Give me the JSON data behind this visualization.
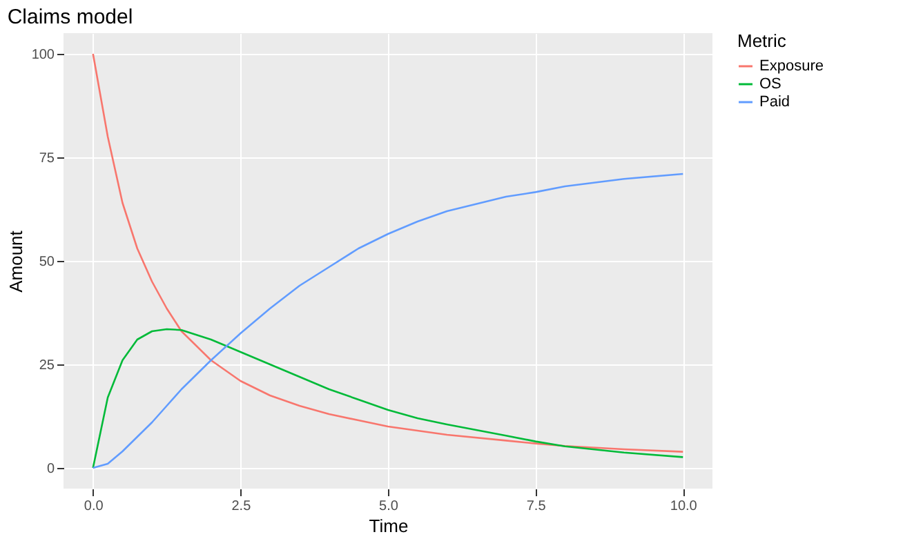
{
  "chart_data": {
    "type": "line",
    "title": "Claims model",
    "xlabel": "Time",
    "ylabel": "Amount",
    "legend_title": "Metric",
    "x": [
      0,
      0.25,
      0.5,
      0.75,
      1,
      1.25,
      1.5,
      2,
      2.5,
      3,
      3.5,
      4,
      4.5,
      5,
      5.5,
      6,
      7,
      7.5,
      8,
      9,
      10
    ],
    "series": [
      {
        "name": "Exposure",
        "color": "#f8766d",
        "values": [
          100,
          80,
          64,
          53,
          45,
          38.5,
          33,
          26,
          21,
          17.5,
          15,
          13,
          11.5,
          10,
          9,
          8,
          6.6,
          5.9,
          5.3,
          4.5,
          3.9
        ]
      },
      {
        "name": "OS",
        "color": "#00ba38",
        "values": [
          0,
          17,
          26,
          31,
          33,
          33.5,
          33.3,
          31,
          28,
          25,
          22,
          19,
          16.5,
          14,
          12,
          10.5,
          7.8,
          6.4,
          5.2,
          3.7,
          2.6
        ]
      },
      {
        "name": "Paid",
        "color": "#619cff",
        "values": [
          0,
          1,
          4,
          7.5,
          11,
          15,
          19,
          26,
          32.5,
          38.5,
          44,
          48.5,
          53,
          56.5,
          59.5,
          62,
          65.5,
          66.6,
          68,
          69.8,
          71
        ]
      }
    ],
    "xlim": [
      -0.5,
      10.5
    ],
    "ylim": [
      -5,
      105
    ],
    "xticks": [
      {
        "value": 0,
        "label": "0.0"
      },
      2.5,
      {
        "value": 5,
        "label": "5.0"
      },
      7.5,
      {
        "value": 10,
        "label": "10.0"
      }
    ],
    "yticks": [
      0,
      25,
      50,
      75,
      100
    ],
    "grid": true,
    "legend": "right",
    "marker": "none",
    "line_style": "solid"
  }
}
